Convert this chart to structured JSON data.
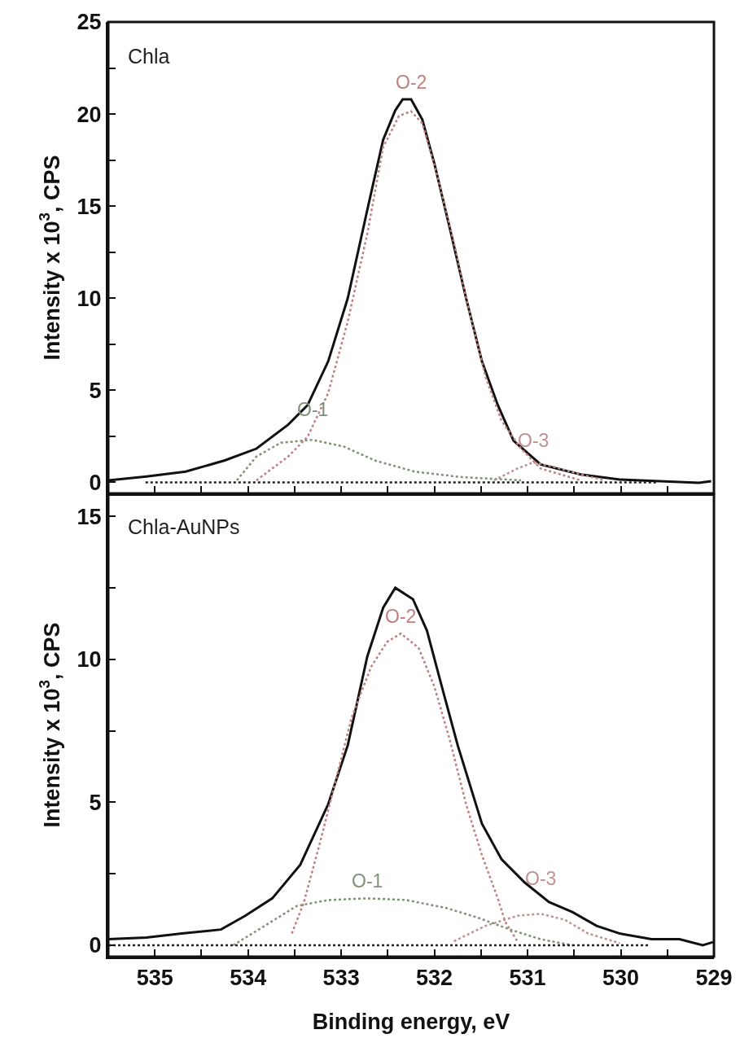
{
  "chart_data": [
    {
      "type": "line",
      "ylabel": "Intensity x 10$^{3}$, CPS",
      "xlim": [
        535.5,
        529
      ],
      "ylim": [
        -0.6,
        25
      ],
      "xticks": [
        535,
        {
          "value": 534.5,
          "label": null
        },
        534,
        {
          "value": 533.5,
          "label": null
        },
        533,
        {
          "value": 532.5,
          "label": null
        },
        532,
        {
          "value": 531.5,
          "label": null
        },
        531,
        {
          "value": 530.5,
          "label": null
        },
        530,
        {
          "value": 529.5,
          "label": null
        },
        529
      ],
      "yticks": [
        0,
        {
          "value": 2.5,
          "label": null
        },
        5,
        {
          "value": 7.5,
          "label": null
        },
        10,
        {
          "value": 12.5,
          "label": null
        },
        15,
        {
          "value": 17.5,
          "label": null
        },
        20,
        {
          "value": 22.5,
          "label": null
        },
        25
      ],
      "tick_labels": "y",
      "grid": false,
      "legend": false,
      "annotations": [
        "Chla"
      ],
      "series": [
        {
          "color": "#111111",
          "line_style": "solid",
          "x": [
            535.5,
            535.09,
            534.67,
            534.25,
            533.91,
            533.57,
            533.36,
            533.14,
            532.93,
            532.72,
            532.55,
            532.42,
            532.34,
            532.25,
            532.13,
            532.0,
            531.83,
            531.66,
            531.49,
            531.32,
            531.15,
            530.86,
            530.43,
            530.01,
            529.58,
            529.16,
            529.03
          ],
          "values": [
            0.11,
            0.32,
            0.58,
            1.19,
            1.83,
            3.13,
            4.2,
            6.57,
            10.0,
            14.8,
            18.6,
            20.2,
            20.8,
            20.8,
            19.7,
            17.3,
            13.7,
            10.0,
            6.57,
            4.2,
            2.26,
            0.97,
            0.43,
            0.15,
            0.06,
            -0.02,
            0.06
          ]
        },
        {
          "name": "O-2",
          "color": "#c08080",
          "line_style": "dotted",
          "x": [
            533.91,
            533.57,
            533.36,
            533.14,
            532.93,
            532.72,
            532.55,
            532.38,
            532.25,
            532.13,
            531.96,
            531.79,
            531.62,
            531.45,
            531.28,
            531.07,
            530.86,
            530.43
          ],
          "values": [
            0.11,
            1.4,
            2.48,
            4.85,
            8.73,
            13.5,
            18.2,
            19.9,
            20.15,
            19.5,
            16.5,
            13.0,
            9.16,
            5.71,
            3.34,
            1.83,
            0.75,
            0.11
          ]
        },
        {
          "name": "O-1",
          "color": "#80907a",
          "line_style": "dotted",
          "x": [
            534.12,
            533.91,
            533.65,
            533.31,
            532.97,
            532.64,
            532.21,
            531.7,
            531.07
          ],
          "values": [
            0.11,
            1.4,
            2.15,
            2.31,
            1.94,
            1.19,
            0.58,
            0.28,
            0.11
          ]
        },
        {
          "name": "O-3",
          "color": "#c09090",
          "line_style": "dotted",
          "x": [
            531.36,
            531.11,
            530.94,
            530.73,
            530.43,
            530.18
          ],
          "values": [
            0.11,
            0.75,
            1.08,
            0.86,
            0.43,
            0.11
          ]
        },
        {
          "color": "#222222",
          "line_style": "dotted",
          "x": [
            535.1,
            529.6
          ],
          "values": [
            0,
            0
          ]
        }
      ]
    },
    {
      "type": "line",
      "xlabel": "Binding energy, eV",
      "ylabel": "Intensity x 10$^{3}$, CPS",
      "xlim": [
        535.5,
        529
      ],
      "ylim": [
        -0.4,
        15.8
      ],
      "xticks": [
        535,
        {
          "value": 534.5,
          "label": null
        },
        534,
        {
          "value": 533.5,
          "label": null
        },
        533,
        {
          "value": 532.5,
          "label": null
        },
        532,
        {
          "value": 531.5,
          "label": null
        },
        531,
        {
          "value": 530.5,
          "label": null
        },
        530,
        {
          "value": 529.5,
          "label": null
        },
        529
      ],
      "yticks": [
        0,
        {
          "value": 2.5,
          "label": null
        },
        5,
        {
          "value": 7.5,
          "label": null
        },
        10,
        {
          "value": 12.5,
          "label": null
        },
        15
      ],
      "grid": false,
      "legend": false,
      "annotations": [
        "Chla-AuNPs"
      ],
      "series": [
        {
          "color": "#111111",
          "line_style": "solid",
          "x": [
            535.5,
            535.09,
            534.71,
            534.29,
            534.03,
            533.74,
            533.44,
            533.14,
            532.93,
            532.72,
            532.55,
            532.42,
            532.23,
            532.08,
            531.92,
            531.75,
            531.49,
            531.28,
            531.03,
            530.77,
            530.52,
            530.26,
            530.01,
            529.67,
            529.37,
            529.12,
            529.01
          ],
          "values": [
            0.21,
            0.27,
            0.41,
            0.55,
            1.03,
            1.64,
            2.81,
            4.93,
            6.99,
            10.1,
            11.8,
            12.5,
            12.1,
            11.0,
            9.04,
            6.99,
            4.25,
            3.01,
            2.19,
            1.51,
            1.16,
            0.68,
            0.41,
            0.21,
            0.21,
            0,
            0.11
          ]
        },
        {
          "name": "O-2",
          "color": "#c08080",
          "line_style": "dotted",
          "x": [
            533.53,
            533.4,
            533.23,
            533.06,
            532.89,
            532.68,
            532.51,
            532.36,
            532.17,
            532.0,
            531.83,
            531.66,
            531.49,
            531.32,
            531.24,
            531.11
          ],
          "values": [
            0.41,
            1.51,
            3.56,
            5.75,
            7.95,
            9.73,
            10.6,
            10.9,
            10.4,
            9.04,
            7.12,
            4.93,
            3.15,
            1.64,
            0.82,
            0.14
          ]
        },
        {
          "name": "O-1",
          "color": "#80907a",
          "line_style": "dotted",
          "x": [
            534.16,
            533.82,
            533.48,
            533.14,
            532.72,
            532.3,
            531.87,
            531.53,
            531.19,
            530.86,
            530.52
          ],
          "values": [
            0,
            0.68,
            1.37,
            1.58,
            1.64,
            1.58,
            1.3,
            0.96,
            0.55,
            0.21,
            0
          ]
        },
        {
          "name": "O-3",
          "color": "#c09090",
          "line_style": "dotted",
          "x": [
            531.79,
            531.45,
            531.11,
            530.86,
            530.6,
            530.35,
            530.01
          ],
          "values": [
            0.14,
            0.68,
            1.03,
            1.1,
            0.89,
            0.41,
            0.07
          ]
        },
        {
          "color": "#222222",
          "line_style": "dotted",
          "x": [
            535.5,
            529.7
          ],
          "values": [
            0,
            0
          ]
        }
      ]
    }
  ]
}
